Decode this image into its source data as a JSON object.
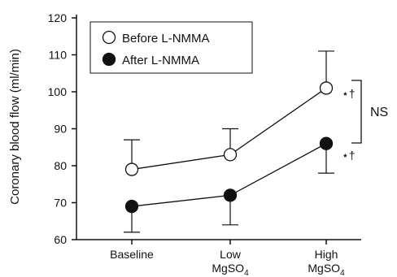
{
  "chart_data": {
    "type": "line",
    "ylabel": "Coronary blood flow (ml/min)",
    "ylim": [
      60,
      120
    ],
    "yticks": [
      "60",
      "70",
      "80",
      "90",
      "100",
      "110",
      "120"
    ],
    "categories": [
      {
        "line1": "Baseline",
        "line2": "",
        "sub": ""
      },
      {
        "line1": "Low",
        "line2": "MgSO",
        "sub": "4"
      },
      {
        "line1": "High",
        "line2": "MgSO",
        "sub": "4"
      }
    ],
    "series": [
      {
        "name": "Before L-NMMA",
        "marker": "open-circle",
        "values": [
          79,
          83,
          101
        ],
        "errors": [
          8,
          7,
          10
        ],
        "error_direction": "up"
      },
      {
        "name": "After L-NMMA",
        "marker": "filled-circle",
        "values": [
          69,
          72,
          86
        ],
        "errors": [
          7,
          8,
          8
        ],
        "error_direction": "down"
      }
    ],
    "annotations": {
      "significance_high_before": "⋆†",
      "significance_high_after": "⋆†",
      "comparison_label": "NS"
    },
    "legend_position": "top-left"
  }
}
